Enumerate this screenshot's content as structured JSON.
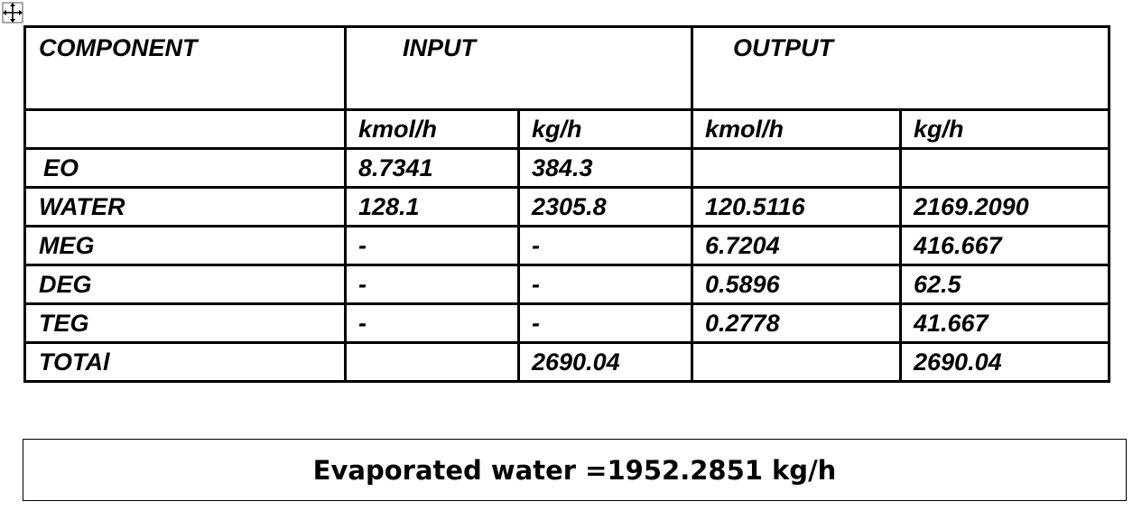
{
  "table": {
    "headers": {
      "component": "COMPONENT",
      "input": "INPUT",
      "output": "OUTPUT"
    },
    "units": {
      "input_kmol": "kmol/h",
      "input_kg": "kg/h",
      "output_kmol": "kmol/h",
      "output_kg": "kg/h"
    },
    "rows": [
      {
        "component": "EO",
        "input_kmol": "8.7341",
        "input_kg": "384.3",
        "output_kmol": "",
        "output_kg": ""
      },
      {
        "component": "WATER",
        "input_kmol": "128.1",
        "input_kg": "2305.8",
        "output_kmol": "120.5116",
        "output_kg": "2169.2090"
      },
      {
        "component": "MEG",
        "input_kmol": "-",
        "input_kg": "-",
        "output_kmol": "6.7204",
        "output_kg": "416.667"
      },
      {
        "component": "DEG",
        "input_kmol": "-",
        "input_kg": "-",
        "output_kmol": "0.5896",
        "output_kg": "62.5"
      },
      {
        "component": "TEG",
        "input_kmol": "-",
        "input_kg": "-",
        "output_kmol": "0.2778",
        "output_kg": "41.667"
      },
      {
        "component": "TOTAl",
        "input_kmol": "",
        "input_kg": "2690.04",
        "output_kmol": "",
        "output_kg": "2690.04"
      }
    ]
  },
  "summary": {
    "text": "Evaporated water =1952.2851 kg/h"
  },
  "icons": {
    "move_handle": "move-arrows-icon"
  }
}
